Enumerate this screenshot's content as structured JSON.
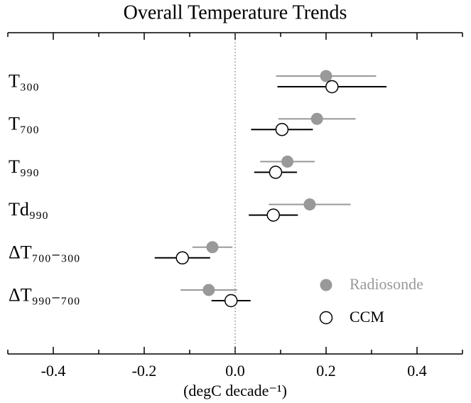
{
  "chart_data": {
    "type": "errorbar-dot",
    "title": "Overall Temperature Trends",
    "x_label": "(degC decade⁻¹)",
    "categories": [
      "T₃₀₀",
      "T₇₀₀",
      "T₉₉₀",
      "Td₉₉₀",
      "ΔT₇₀₀₋₃₀₀",
      "ΔT₉₉₀₋₇₀₀"
    ],
    "series": [
      {
        "name": "Radiosonde",
        "color": "#999999",
        "marker": "filled",
        "values": [
          0.2,
          0.18,
          0.115,
          0.164,
          -0.05,
          -0.058
        ],
        "errors": [
          0.11,
          0.085,
          0.06,
          0.09,
          0.044,
          0.062
        ]
      },
      {
        "name": "CCM",
        "color": "#000000",
        "marker": "open",
        "values": [
          0.213,
          0.103,
          0.089,
          0.084,
          -0.116,
          -0.009
        ],
        "errors": [
          0.12,
          0.068,
          0.047,
          0.054,
          0.061,
          0.043
        ]
      }
    ],
    "xlim": [
      -0.5,
      0.5
    ],
    "xticks": [
      -0.4,
      -0.2,
      {
        "value": 0,
        "label": "0.0"
      },
      0.2,
      0.4
    ],
    "xminorticks": [
      -0.5,
      -0.3,
      -0.1,
      0.1,
      0.3,
      0.5
    ],
    "zero_line": true,
    "legend": "lower right"
  }
}
